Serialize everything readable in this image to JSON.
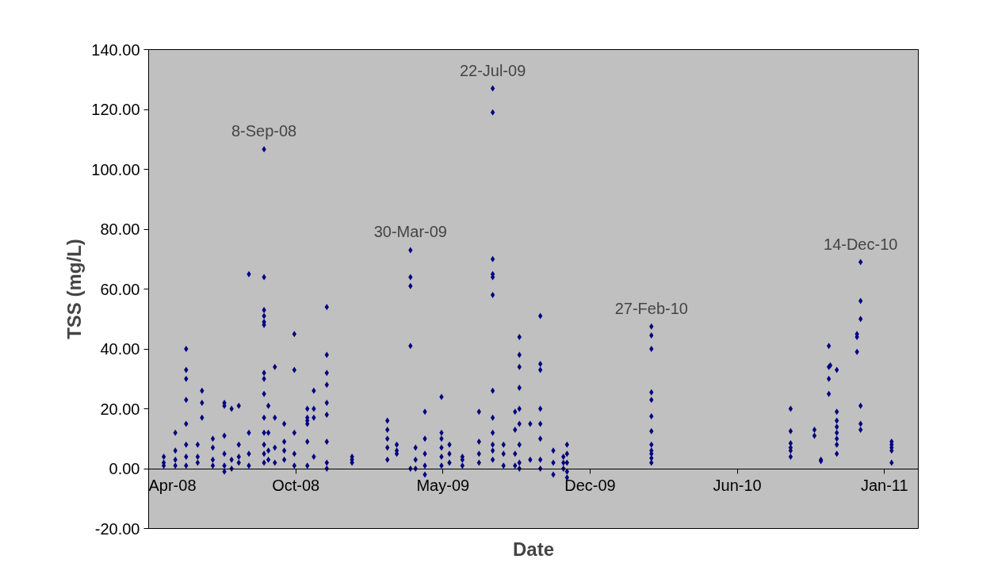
{
  "chart_data": {
    "type": "scatter",
    "xlabel": "Date",
    "ylabel": "TSS (mg/L)",
    "marker": "diamond",
    "grid": false,
    "xlim": [
      "2008-04-01",
      "2011-03-04"
    ],
    "ylim": [
      -20,
      140
    ],
    "xticks": [
      {
        "value": "2008-04-01",
        "label": "Apr-08"
      },
      {
        "value": "2008-10-22",
        "label": "Oct-08"
      },
      {
        "value": "2009-05-14",
        "label": "May-09"
      },
      {
        "value": "2009-12-04",
        "label": "Dec-09"
      },
      {
        "value": "2010-06-26",
        "label": "Jun-10"
      },
      {
        "value": "2011-01-16",
        "label": "Jan-11"
      }
    ],
    "yticks": [
      {
        "value": -20,
        "label": "-20.00"
      },
      {
        "value": 0,
        "label": "0.00"
      },
      {
        "value": 20,
        "label": "20.00"
      },
      {
        "value": 40,
        "label": "40.00"
      },
      {
        "value": 60,
        "label": "60.00"
      },
      {
        "value": 80,
        "label": "80.00"
      },
      {
        "value": 100,
        "label": "100.00"
      },
      {
        "value": 120,
        "label": "120.00"
      },
      {
        "value": 140,
        "label": "140.00"
      }
    ],
    "annotations": [
      {
        "text": "8-Sep-08",
        "x": "2008-09-08",
        "y": 106.7
      },
      {
        "text": "30-Mar-09",
        "x": "2009-03-30",
        "y": 73
      },
      {
        "text": "22-Jul-09",
        "x": "2009-07-22",
        "y": 127
      },
      {
        "text": "27-Feb-10",
        "x": "2010-02-27",
        "y": 47.5
      },
      {
        "text": "14-Dec-10",
        "x": "2010-12-14",
        "y": 69
      }
    ],
    "series": [
      {
        "color": "#000080",
        "x": [
          "2008-04-22",
          "2008-04-22",
          "2008-04-22",
          "2008-05-08",
          "2008-05-08",
          "2008-05-08",
          "2008-05-08",
          "2008-05-23",
          "2008-05-23",
          "2008-05-23",
          "2008-05-23",
          "2008-05-23",
          "2008-05-23",
          "2008-05-23",
          "2008-05-23",
          "2008-06-08",
          "2008-06-08",
          "2008-06-08",
          "2008-06-14",
          "2008-06-14",
          "2008-06-14",
          "2008-06-29",
          "2008-06-29",
          "2008-06-29",
          "2008-06-29",
          "2008-07-15",
          "2008-07-15",
          "2008-07-15",
          "2008-07-15",
          "2008-07-15",
          "2008-07-15",
          "2008-07-25",
          "2008-07-25",
          "2008-07-25",
          "2008-08-04",
          "2008-08-04",
          "2008-08-04",
          "2008-08-04",
          "2008-08-18",
          "2008-08-18",
          "2008-08-18",
          "2008-08-18",
          "2008-09-08",
          "2008-09-08",
          "2008-09-08",
          "2008-09-08",
          "2008-09-08",
          "2008-09-08",
          "2008-09-08",
          "2008-09-08",
          "2008-09-08",
          "2008-09-08",
          "2008-09-08",
          "2008-09-08",
          "2008-09-08",
          "2008-09-08",
          "2008-09-14",
          "2008-09-14",
          "2008-09-14",
          "2008-09-14",
          "2008-09-23",
          "2008-09-23",
          "2008-09-23",
          "2008-09-23",
          "2008-10-06",
          "2008-10-06",
          "2008-10-06",
          "2008-10-06",
          "2008-10-20",
          "2008-10-20",
          "2008-10-20",
          "2008-10-20",
          "2008-10-20",
          "2008-11-07",
          "2008-11-07",
          "2008-11-07",
          "2008-11-07",
          "2008-11-07",
          "2008-11-07",
          "2008-11-16",
          "2008-11-16",
          "2008-11-16",
          "2008-11-16",
          "2008-12-04",
          "2008-12-04",
          "2008-12-04",
          "2008-12-04",
          "2008-12-04",
          "2008-12-04",
          "2008-12-04",
          "2008-12-04",
          "2008-12-04",
          "2009-01-08",
          "2009-01-08",
          "2009-01-08",
          "2009-02-26",
          "2009-02-26",
          "2009-02-26",
          "2009-02-26",
          "2009-02-26",
          "2009-03-11",
          "2009-03-11",
          "2009-03-11",
          "2009-03-30",
          "2009-03-30",
          "2009-03-30",
          "2009-03-30",
          "2009-03-30",
          "2009-04-06",
          "2009-04-06",
          "2009-04-06",
          "2009-04-19",
          "2009-04-19",
          "2009-04-19",
          "2009-04-19",
          "2009-04-19",
          "2009-05-12",
          "2009-05-12",
          "2009-05-12",
          "2009-05-12",
          "2009-05-12",
          "2009-05-12",
          "2009-05-23",
          "2009-05-23",
          "2009-05-23",
          "2009-06-10",
          "2009-06-10",
          "2009-06-10",
          "2009-07-03",
          "2009-07-03",
          "2009-07-03",
          "2009-07-03",
          "2009-07-22",
          "2009-07-22",
          "2009-07-22",
          "2009-07-22",
          "2009-07-22",
          "2009-07-22",
          "2009-07-22",
          "2009-07-22",
          "2009-07-22",
          "2009-07-22",
          "2009-07-22",
          "2009-07-22",
          "2009-08-06",
          "2009-08-06",
          "2009-08-06",
          "2009-08-22",
          "2009-08-22",
          "2009-08-22",
          "2009-08-22",
          "2009-08-28",
          "2009-08-28",
          "2009-08-28",
          "2009-08-28",
          "2009-08-28",
          "2009-08-28",
          "2009-08-28",
          "2009-08-28",
          "2009-08-28",
          "2009-09-12",
          "2009-09-12",
          "2009-09-26",
          "2009-09-26",
          "2009-09-26",
          "2009-09-26",
          "2009-09-26",
          "2009-09-26",
          "2009-09-26",
          "2009-09-26",
          "2009-10-14",
          "2009-10-14",
          "2009-10-14",
          "2009-10-28",
          "2009-10-28",
          "2009-10-28",
          "2009-11-02",
          "2009-11-02",
          "2009-11-02",
          "2009-11-02",
          "2009-11-02",
          "2010-02-27",
          "2010-02-27",
          "2010-02-27",
          "2010-02-27",
          "2010-02-27",
          "2010-02-27",
          "2010-02-27",
          "2010-02-27",
          "2010-02-27",
          "2010-02-27",
          "2010-02-27",
          "2010-02-27",
          "2010-09-08",
          "2010-09-08",
          "2010-09-08",
          "2010-09-08",
          "2010-09-08",
          "2010-09-08",
          "2010-10-11",
          "2010-10-11",
          "2010-10-20",
          "2010-10-20",
          "2010-10-31",
          "2010-10-31",
          "2010-10-31",
          "2010-10-31",
          "2010-11-02",
          "2010-11-11",
          "2010-11-11",
          "2010-11-11",
          "2010-11-11",
          "2010-11-11",
          "2010-11-11",
          "2010-11-11",
          "2010-11-11",
          "2010-12-09",
          "2010-12-09",
          "2010-12-09",
          "2010-12-14",
          "2010-12-14",
          "2010-12-14",
          "2010-12-14",
          "2010-12-14",
          "2010-12-14",
          "2011-01-26",
          "2011-01-26",
          "2011-01-26",
          "2011-01-26",
          "2011-01-26"
        ],
        "values": [
          2,
          4,
          1,
          3,
          6,
          12,
          1,
          40,
          33,
          30,
          23,
          15,
          8,
          4,
          1,
          4,
          2,
          8,
          26,
          22,
          17,
          3,
          1,
          10,
          7,
          22,
          21,
          11,
          5,
          1,
          -1,
          20,
          3,
          0,
          21,
          8,
          4,
          2,
          65,
          12,
          5,
          1,
          106.7,
          64,
          53,
          51,
          49,
          48,
          32,
          30,
          25,
          17,
          12,
          8,
          5,
          2,
          21,
          12,
          6,
          3,
          34,
          17,
          7,
          2,
          15,
          9,
          6,
          3,
          45,
          33,
          12,
          5,
          1,
          17,
          16,
          20,
          15,
          9,
          1,
          26,
          20,
          17,
          4,
          54,
          38,
          32,
          28,
          22,
          18,
          9,
          2,
          0,
          4,
          2,
          3,
          16,
          13,
          10,
          7,
          3,
          8,
          6,
          5,
          73,
          64,
          61,
          41,
          0,
          7,
          3,
          0,
          19,
          10,
          5,
          1,
          -2,
          24,
          12,
          10,
          7,
          4,
          1,
          8,
          5,
          2,
          4,
          1,
          3,
          9,
          19,
          5,
          2,
          127,
          119,
          70,
          65,
          64,
          58,
          26,
          17,
          12,
          8,
          6,
          3,
          8,
          5,
          1,
          19,
          13,
          5,
          1,
          44,
          38,
          34,
          27,
          20,
          15,
          8,
          2,
          0,
          15,
          3,
          51,
          35,
          33,
          20,
          15,
          10,
          3,
          0,
          6,
          2,
          -2,
          4,
          2,
          0,
          8,
          5,
          2,
          -1,
          -3,
          47.5,
          44.5,
          40,
          25.5,
          23,
          17.5,
          12.5,
          8,
          6,
          5,
          3.5,
          2,
          20,
          12.5,
          8.5,
          7,
          6,
          4,
          13,
          11,
          3,
          2.5,
          41,
          34,
          30,
          25,
          34.5,
          33,
          19,
          16,
          14,
          12,
          10,
          8,
          5,
          45,
          44,
          39,
          69,
          56,
          50,
          21,
          15,
          13,
          9,
          8,
          7,
          6,
          2
        ]
      }
    ]
  }
}
